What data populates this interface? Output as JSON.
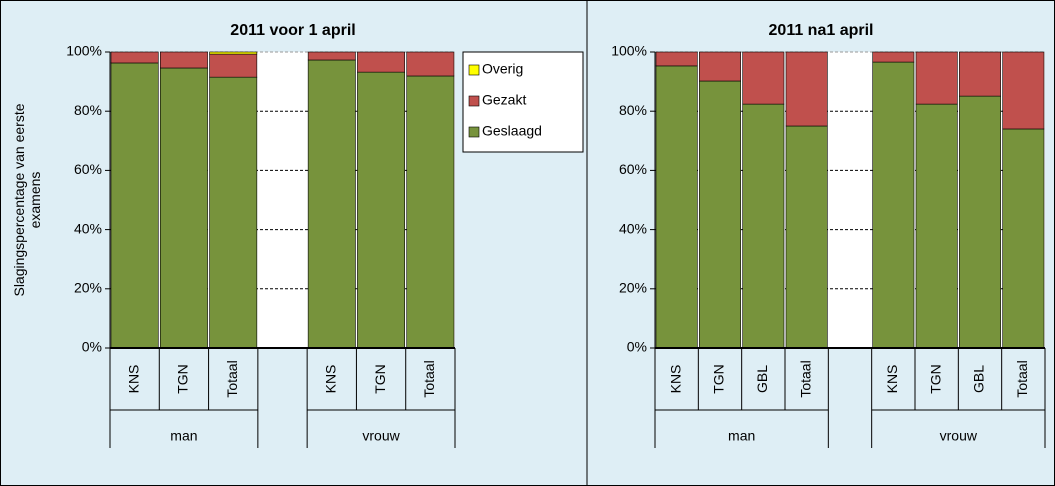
{
  "chart_data": [
    {
      "type": "bar",
      "stacked": true,
      "title": "2011 voor 1 april",
      "ylabel": "Slagingspercentage van eerste examens",
      "categories": [
        "KNS",
        "TGN",
        "Totaal",
        null,
        "KNS",
        "TGN",
        "Totaal"
      ],
      "group_labels": [
        "man",
        "man",
        "man",
        null,
        "vrouw",
        "vrouw",
        "vrouw"
      ],
      "series": [
        {
          "name": "Geslaagd",
          "color": "#77933c",
          "values": [
            96.3,
            94.6,
            91.5,
            null,
            97.3,
            93.2,
            91.9
          ]
        },
        {
          "name": "Gezakt",
          "color": "#c0504d",
          "values": [
            3.7,
            5.4,
            7.8,
            null,
            2.7,
            6.8,
            8.1
          ]
        },
        {
          "name": "Overig",
          "color": "#ffff00",
          "values": [
            0,
            0,
            0.7,
            null,
            0,
            0,
            0
          ]
        }
      ],
      "ylim": [
        0,
        100
      ],
      "yticks": [
        {
          "value": 0,
          "label": "0%"
        },
        {
          "value": 20,
          "label": "20%"
        },
        {
          "value": 40,
          "label": "40%"
        },
        {
          "value": 60,
          "label": "60%"
        },
        {
          "value": 80,
          "label": "80%"
        },
        {
          "value": 100,
          "label": "100%"
        }
      ],
      "grid": true,
      "legend": "right"
    },
    {
      "type": "bar",
      "stacked": true,
      "title": "2011 na1 april",
      "categories": [
        "KNS",
        "TGN",
        "GBL",
        "Totaal",
        null,
        "KNS",
        "TGN",
        "GBL",
        "Totaal"
      ],
      "group_labels": [
        "man",
        "man",
        "man",
        "man",
        null,
        "vrouw",
        "vrouw",
        "vrouw",
        "vrouw"
      ],
      "series": [
        {
          "name": "Geslaagd",
          "color": "#77933c",
          "values": [
            95.3,
            90.2,
            82.4,
            75,
            null,
            96.6,
            82.4,
            85.1,
            74
          ]
        },
        {
          "name": "Gezakt",
          "color": "#c0504d",
          "values": [
            4.7,
            9.8,
            17.6,
            25,
            null,
            3.4,
            17.6,
            14.9,
            26
          ]
        },
        {
          "name": "Overig",
          "color": "#ffff00",
          "values": [
            0,
            0,
            0,
            0,
            null,
            0,
            0,
            0,
            0
          ]
        }
      ],
      "ylim": [
        0,
        100
      ],
      "yticks": [
        {
          "value": 0,
          "label": "0%"
        },
        {
          "value": 20,
          "label": "20%"
        },
        {
          "value": 40,
          "label": "40%"
        },
        {
          "value": 60,
          "label": "60%"
        },
        {
          "value": 80,
          "label": "80%"
        },
        {
          "value": 100,
          "label": "100%"
        }
      ],
      "grid": true
    }
  ]
}
